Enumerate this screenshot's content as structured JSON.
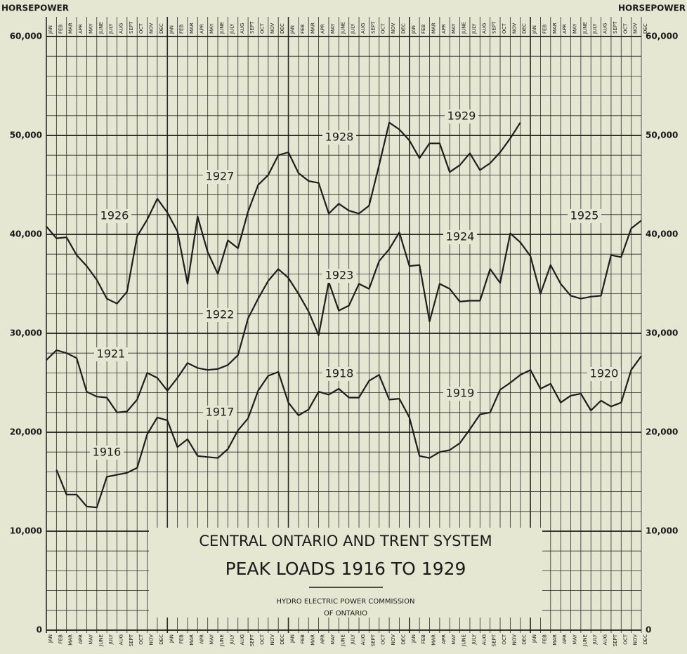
{
  "chart_data": {
    "type": "line",
    "title": "CENTRAL ONTARIO AND TRENT SYSTEM",
    "subtitle": "PEAK LOADS 1916 TO 1929",
    "source": [
      "HYDRO ELECTRIC POWER COMMISSION",
      "OF ONTARIO"
    ],
    "y_label": "HORSEPOWER",
    "categories": [
      "JAN",
      "FEB",
      "MAR",
      "APR",
      "MAY",
      "JUNE",
      "JULY",
      "AUG",
      "SEPT",
      "OCT",
      "NOV",
      "DEC"
    ],
    "ylim": [
      0,
      60000
    ],
    "yticks": [
      0,
      {
        "value": 10000,
        "label": "10,000"
      },
      {
        "value": 20000,
        "label": "20,000"
      },
      {
        "value": 30000,
        "label": "30,000"
      },
      {
        "value": 40000,
        "label": "40,000"
      },
      {
        "value": 50000,
        "label": "50,000"
      },
      {
        "value": 60000,
        "label": "60,000"
      }
    ],
    "grid": true,
    "color": "#1e1e1e",
    "series": [
      {
        "name": "1916",
        "values": [
          null,
          16200,
          13700,
          13700,
          12500,
          12400,
          15500,
          15700,
          15900,
          16400,
          19800,
          21500
        ]
      },
      {
        "name": "1917",
        "values": [
          21200,
          18500,
          19300,
          17600,
          17500,
          17400,
          18300,
          20200,
          21400,
          24200,
          25700,
          26100
        ]
      },
      {
        "name": "1918",
        "values": [
          23000,
          21700,
          22300,
          24100,
          23800,
          24400,
          23500,
          23500,
          25200,
          25800,
          23300,
          23400
        ]
      },
      {
        "name": "1919",
        "values": [
          21500,
          17600,
          17400,
          18000,
          18200,
          18900,
          20300,
          21800,
          22000,
          24300,
          25000,
          25800
        ]
      },
      {
        "name": "1920",
        "values": [
          26300,
          24400,
          24900,
          23000,
          23700,
          23900,
          22200,
          23200,
          22600,
          23000,
          26300,
          27700
        ]
      },
      {
        "name": "1921",
        "values": [
          27300,
          28300,
          28000,
          27500,
          24100,
          23600,
          23500,
          22000,
          22100,
          23300,
          26000,
          25500
        ]
      },
      {
        "name": "1922",
        "values": [
          24200,
          25500,
          27000,
          26500,
          26300,
          26400,
          26800,
          27800,
          31500,
          33500,
          35300,
          36500
        ]
      },
      {
        "name": "1923",
        "values": [
          35600,
          34000,
          32200,
          29800,
          35200,
          32300,
          32800,
          35000,
          34500,
          37300,
          38500,
          40200
        ]
      },
      {
        "name": "1924",
        "values": [
          36800,
          36900,
          31200,
          35000,
          34500,
          33200,
          33300,
          33300,
          36500,
          35100,
          40100,
          39200
        ]
      },
      {
        "name": "1925",
        "values": [
          37800,
          34000,
          36900,
          35000,
          33800,
          33500,
          33700,
          33800,
          37900,
          37700,
          40600,
          41400
        ]
      },
      {
        "name": "1926",
        "values": [
          40800,
          39600,
          39700,
          37900,
          36800,
          35400,
          33500,
          33000,
          34200,
          39800,
          41500,
          43600
        ]
      },
      {
        "name": "1927",
        "values": [
          42200,
          40300,
          35000,
          41800,
          38200,
          36000,
          39400,
          38600,
          42300,
          45000,
          46000,
          48000
        ]
      },
      {
        "name": "1928",
        "values": [
          48300,
          46200,
          45400,
          45200,
          42100,
          43100,
          42400,
          42100,
          42900,
          47000,
          51300,
          50600
        ]
      },
      {
        "name": "1929",
        "values": [
          49500,
          47700,
          49200,
          49200,
          46300,
          47000,
          48200,
          46500,
          47200,
          48300,
          49700,
          51300
        ]
      }
    ]
  }
}
